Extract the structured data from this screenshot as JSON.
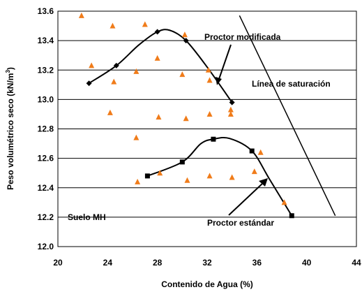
{
  "chart_data": {
    "type": "scatter",
    "xlabel": "Contenido de Agua  (%)",
    "ylabel": "Peso volumétrico seco (kN/m",
    "ylabel_sup": "3",
    "ylabel_close": ")",
    "xlim": [
      20,
      44
    ],
    "ylim": [
      12.0,
      13.6
    ],
    "x_ticks": [
      20,
      24,
      28,
      32,
      36,
      40,
      44
    ],
    "x_tick_labels": [
      "20",
      "24",
      "28",
      "32",
      "36",
      "40",
      "44"
    ],
    "y_ticks": [
      12.0,
      12.2,
      12.4,
      12.6,
      12.8,
      13.0,
      13.2,
      13.4,
      13.6
    ],
    "y_tick_labels": [
      "12.0",
      "12.2",
      "12.4",
      "12.6",
      "12.8",
      "13.0",
      "13.2",
      "13.4",
      "13.6"
    ],
    "grid": "horizontal",
    "colors": {
      "triangles": "#f07c1a",
      "lines": "#000000"
    },
    "series": [
      {
        "name": "Proctor modificada",
        "marker": "diamond",
        "x": [
          22.5,
          24.7,
          28.0,
          30.3,
          34.0
        ],
        "y": [
          13.11,
          13.23,
          13.46,
          13.4,
          12.98
        ],
        "curve": [
          [
            22.5,
            13.11
          ],
          [
            24.7,
            13.23
          ],
          [
            26.5,
            13.37
          ],
          [
            28.0,
            13.46
          ],
          [
            29.0,
            13.47
          ],
          [
            30.3,
            13.4
          ],
          [
            32.0,
            13.22
          ],
          [
            34.0,
            12.98
          ]
        ]
      },
      {
        "name": "Proctor estándar",
        "marker": "square",
        "x": [
          27.2,
          30.0,
          32.5,
          35.6,
          38.8
        ],
        "y": [
          12.48,
          12.575,
          12.73,
          12.65,
          12.21
        ],
        "curve": [
          [
            27.2,
            12.48
          ],
          [
            30.0,
            12.575
          ],
          [
            31.5,
            12.7
          ],
          [
            32.5,
            12.73
          ],
          [
            33.8,
            12.735
          ],
          [
            35.6,
            12.65
          ],
          [
            37.0,
            12.46
          ],
          [
            38.8,
            12.21
          ]
        ]
      },
      {
        "name": "Línea de saturación",
        "marker": "none",
        "x": [
          34.6,
          42.3
        ],
        "y": [
          13.57,
          12.21
        ]
      },
      {
        "name": "Suelo MH",
        "marker": "triangle",
        "x": [
          21.9,
          22.7,
          24.2,
          24.4,
          24.5,
          26.3,
          26.3,
          26.4,
          27.0,
          28.0,
          28.1,
          28.2,
          30.0,
          30.2,
          30.3,
          30.4,
          32.1,
          32.2,
          32.2,
          32.2,
          33.9,
          33.9,
          34.0,
          35.8,
          36.3,
          38.2
        ],
        "y": [
          13.57,
          13.23,
          12.91,
          13.5,
          13.12,
          13.19,
          12.74,
          12.44,
          13.51,
          13.28,
          12.88,
          12.5,
          13.17,
          13.44,
          12.87,
          12.45,
          13.2,
          13.13,
          12.9,
          12.48,
          12.93,
          12.9,
          12.47,
          12.51,
          12.64,
          12.3
        ]
      }
    ],
    "annotations": {
      "proctor_mod": "Proctor modificada",
      "saturacion": "Línea de saturación",
      "suelo": "Suelo MH",
      "proctor_est": "Proctor estándar"
    }
  }
}
